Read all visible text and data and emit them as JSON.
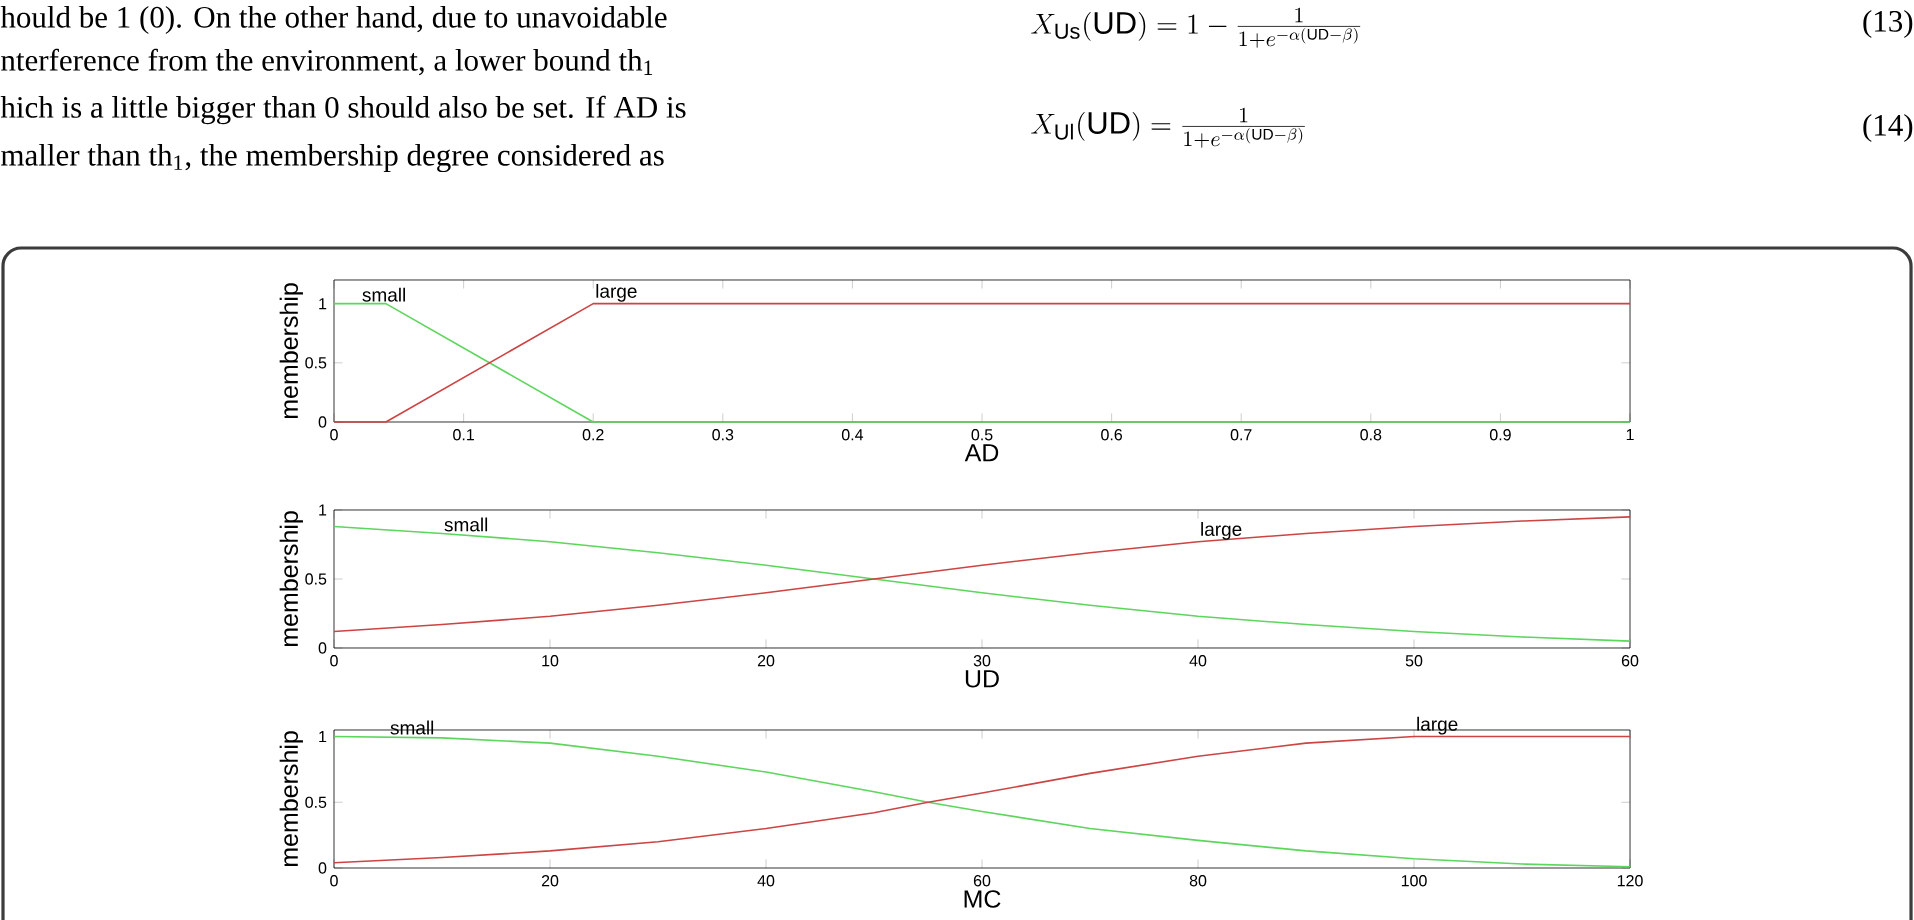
{
  "chart_data": [
    {
      "type": "other",
      "annotations": [
        "hould be 1 (0). On the other hand, due to unavoidable",
        "nterference from the environment, a lower bound th$_{1}$",
        "hich is a little bigger than 0 should also be set. If AD is",
        "maller than th$_{1}$, the membership degree considered as",
        "X_{\\mathrm{Us}}(\\mathrm{UD}) = 1-\\frac{1}{1+e^{-\\alpha(\\mathrm{UD}-\\beta)}}",
        "(13)",
        "X_{\\mathrm{Ul}}(\\mathrm{UD}) = \\frac{1}{1+e^{-\\alpha(\\mathrm{UD}-\\beta)}}",
        "(14)"
      ]
    },
    {
      "type": "line",
      "xlabel": "AD",
      "ylabel": "membership",
      "xlim": [
        0,
        1
      ],
      "ylim": [
        0,
        1.2
      ],
      "xticks": [
        0,
        0.1,
        0.2,
        0.3,
        0.4,
        0.5,
        0.6,
        0.7,
        0.8,
        0.9,
        1
      ],
      "yticks": [
        0,
        0.5,
        1
      ],
      "series": [
        {
          "color": "#5cd65c",
          "x": [
            0,
            0.04,
            0.2,
            1
          ],
          "values": [
            1,
            1,
            0,
            0
          ]
        },
        {
          "color": "#cc4444",
          "x": [
            0,
            0.04,
            0.2,
            1
          ],
          "values": [
            0,
            0,
            1,
            1
          ]
        }
      ],
      "annotations": [
        {
          "text": "small",
          "x": 0.02,
          "y": 1
        },
        {
          "text": "large",
          "x": 0.2,
          "y": 1
        }
      ]
    },
    {
      "type": "line",
      "xlabel": "UD",
      "ylabel": "membership",
      "xlim": [
        0,
        60
      ],
      "ylim": [
        0,
        1
      ],
      "xticks": [
        0,
        10,
        20,
        30,
        40,
        50,
        60
      ],
      "yticks": [
        0,
        0.5,
        1
      ],
      "series": [
        {
          "color": "#5cd65c",
          "x": [
            0,
            5,
            10,
            15,
            20,
            25,
            30,
            35,
            40,
            45,
            50,
            55,
            60
          ],
          "values": [
            0.88,
            0.83,
            0.77,
            0.69,
            0.6,
            0.5,
            0.4,
            0.31,
            0.23,
            0.17,
            0.12,
            0.08,
            0.05
          ]
        },
        {
          "color": "#cc4444",
          "x": [
            0,
            5,
            10,
            15,
            20,
            25,
            30,
            35,
            40,
            45,
            50,
            55,
            60
          ],
          "values": [
            0.12,
            0.17,
            0.23,
            0.31,
            0.4,
            0.5,
            0.6,
            0.69,
            0.77,
            0.83,
            0.88,
            0.92,
            0.95
          ]
        }
      ],
      "annotations": [
        {
          "text": "small",
          "x": 5,
          "y": 0.83
        },
        {
          "text": "large",
          "x": 40,
          "y": 0.77
        }
      ]
    },
    {
      "type": "line",
      "xlabel": "MC",
      "ylabel": "membership",
      "xlim": [
        0,
        120
      ],
      "ylim": [
        0,
        1.05
      ],
      "xticks": [
        0,
        20,
        40,
        60,
        80,
        100,
        120
      ],
      "yticks": [
        0,
        0.5,
        1
      ],
      "series": [
        {
          "color": "#5cd65c",
          "x": [
            0,
            10,
            20,
            30,
            40,
            50,
            55,
            60,
            70,
            80,
            90,
            100,
            110,
            120
          ],
          "values": [
            1,
            0.99,
            0.95,
            0.85,
            0.73,
            0.58,
            0.5,
            0.43,
            0.3,
            0.21,
            0.13,
            0.07,
            0.03,
            0.01
          ]
        },
        {
          "color": "#cc4444",
          "x": [
            0,
            10,
            20,
            30,
            40,
            50,
            55,
            60,
            70,
            80,
            90,
            100,
            110,
            120
          ],
          "values": [
            0.04,
            0.08,
            0.13,
            0.2,
            0.3,
            0.42,
            0.5,
            0.57,
            0.72,
            0.85,
            0.95,
            1,
            1,
            1
          ]
        }
      ],
      "annotations": [
        {
          "text": "small",
          "x": 5,
          "y": 1
        },
        {
          "text": "large",
          "x": 100,
          "y": 1
        }
      ]
    }
  ]
}
